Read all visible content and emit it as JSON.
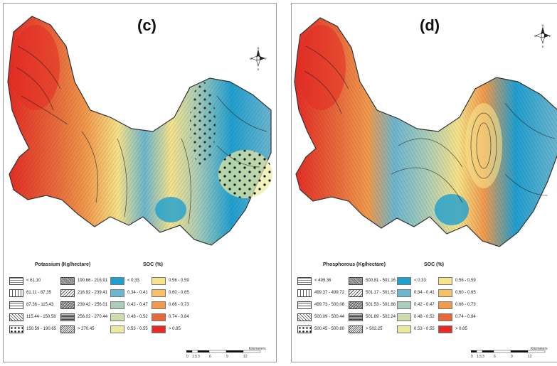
{
  "panels": {
    "c": {
      "label": "(c)",
      "nutrient_title": "Potassium (Kg/hectare)",
      "soc_title": "SOC (%)",
      "nutrient_classes_a": [
        "< 61.10",
        "61.11 - 87.35",
        "87.36 - 115.43",
        "115.44 - 150.58",
        "150.59 - 190.65"
      ],
      "nutrient_classes_b": [
        "190.66 - 216.91",
        "216.92 - 239.41",
        "239.42 - 256.01",
        "256.02 - 270.44",
        "> 270.45"
      ]
    },
    "d": {
      "label": "(d)",
      "nutrient_title": "Phosphorous (Kg/hectare)",
      "soc_title": "SOC (%)",
      "nutrient_classes_a": [
        "< 499.36",
        "499.37 - 499.72",
        "499.73 - 500.08",
        "500.09 - 500.44",
        "500.45 - 500.80"
      ],
      "nutrient_classes_b": [
        "500.81 - 501.16",
        "501.17 - 501.52",
        "501.53 - 501.88",
        "501.89 - 502.24",
        "> 502.25"
      ]
    }
  },
  "soc_classes": [
    "< 0.33",
    "0.34 - 0.41",
    "0.42 - 0.47",
    "0.48 - 0.52",
    "0.53 - 0.55",
    "0.56 - 0.59",
    "0.60 - 0.65",
    "0.66 - 0.73",
    "0.74 - 0.84",
    "> 0.85"
  ],
  "soc_colors": [
    "#1f9fd0",
    "#6cb6cf",
    "#a9cdb8",
    "#cfddae",
    "#ecea9e",
    "#f6e38a",
    "#f7c066",
    "#f29a4c",
    "#e9683a",
    "#e42b24"
  ],
  "north_arrow": {
    "n": "N",
    "s": "S",
    "e": "E",
    "w": "W"
  },
  "scale": {
    "ticks": [
      "0",
      "1.5",
      "3",
      "6",
      "9",
      "12"
    ],
    "unit": "Kilometers"
  },
  "icons": {
    "north": "north-arrow-icon"
  }
}
